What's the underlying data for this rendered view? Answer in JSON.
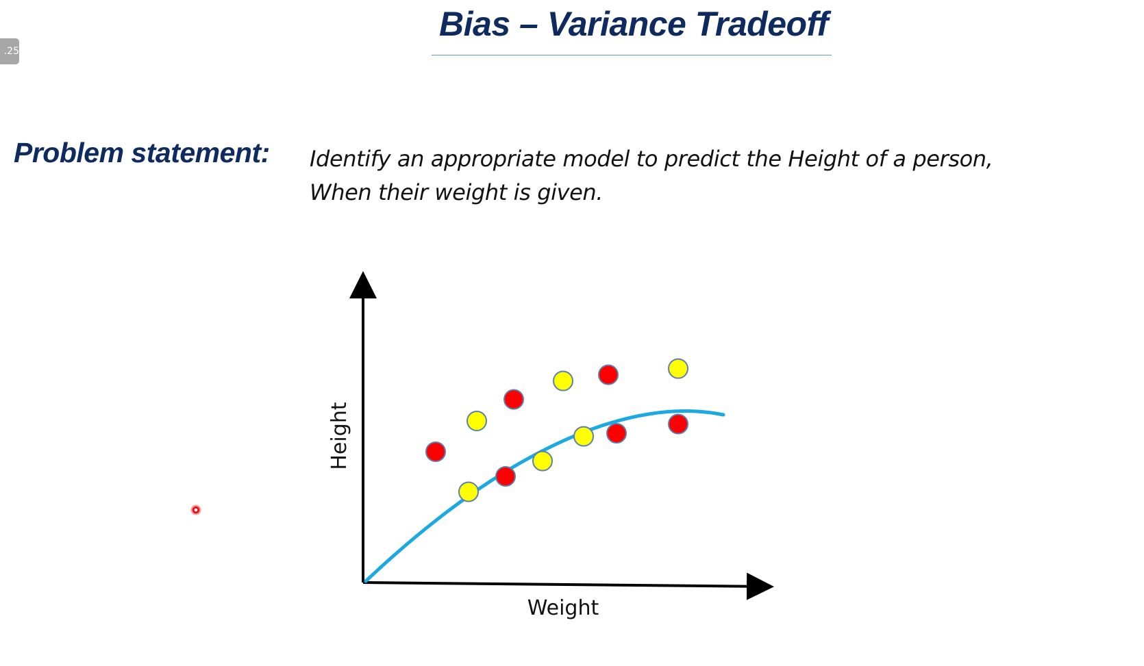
{
  "slide": {
    "badge": ".25",
    "title": "Bias – Variance Tradeoff",
    "problem_label": "Problem statement:",
    "problem_lines": [
      "Identify an appropriate model to predict the Height of a person,",
      "When their weight is given."
    ]
  },
  "colors": {
    "title": "#0e2a5e",
    "curve": "#1ba9e2",
    "point_red": "#ff0000",
    "point_yellow": "#ffff00",
    "point_outline": "#5b7fae",
    "axis": "#000000"
  },
  "chart_data": {
    "type": "scatter",
    "xlabel": "Weight",
    "ylabel": "Height",
    "grid": false,
    "xlim": [
      0,
      100
    ],
    "ylim": [
      0,
      100
    ],
    "series": [
      {
        "color": "red",
        "points": [
          [
            17,
            42
          ],
          [
            34,
            34
          ],
          [
            36,
            59
          ],
          [
            59,
            67
          ],
          [
            61,
            48
          ],
          [
            76,
            51
          ]
        ]
      },
      {
        "color": "yellow",
        "points": [
          [
            25,
            29
          ],
          [
            27,
            52
          ],
          [
            43,
            39
          ],
          [
            48,
            65
          ],
          [
            53,
            47
          ],
          [
            76,
            69
          ]
        ]
      }
    ],
    "fit_curve": {
      "type": "quadratic",
      "points": [
        [
          0,
          0
        ],
        [
          35,
          44
        ],
        [
          65,
          60
        ],
        [
          87,
          54
        ]
      ]
    }
  },
  "icons": {
    "pointer": "laser-pointer-icon"
  }
}
